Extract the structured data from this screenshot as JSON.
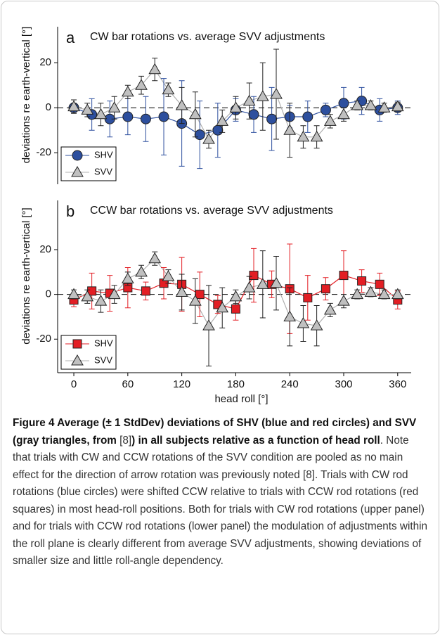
{
  "chart_data": [
    {
      "type": "line",
      "panel_label": "a",
      "title": "CW bar rotations vs. average SVV adjustments",
      "y_label": "deviations re earth-vertical [°]",
      "xlim": [
        -18,
        375
      ],
      "ylim": [
        -34,
        36
      ],
      "yticks": [
        -20,
        0,
        20
      ],
      "grid": false,
      "zero_line": true,
      "legend": "lower left",
      "series": [
        {
          "name": "SHV",
          "color": "#2d4f9e",
          "line_color": "#2d4f9e",
          "error_color": "#2d4f9e",
          "marker": "circle",
          "x": [
            0,
            20,
            40,
            60,
            80,
            100,
            120,
            140,
            160,
            180,
            200,
            220,
            240,
            260,
            280,
            300,
            320,
            340,
            360
          ],
          "values": [
            0,
            -3,
            -5,
            -4,
            -5,
            -4,
            -7,
            -12,
            -10,
            -1,
            -3,
            -5,
            -4,
            -4,
            -1,
            2,
            3,
            -1,
            0
          ],
          "errors": [
            2,
            7,
            8,
            8,
            10,
            17,
            19,
            15,
            12,
            5,
            8,
            14,
            5,
            7,
            3,
            7,
            6,
            5,
            3
          ]
        },
        {
          "name": "SVV",
          "color": "#c0c0c0",
          "line_color": "#b0b0b0",
          "error_color": "#222222",
          "marker": "triangle",
          "x": [
            0,
            15,
            30,
            45,
            60,
            75,
            90,
            105,
            120,
            135,
            150,
            165,
            180,
            195,
            210,
            225,
            240,
            255,
            270,
            285,
            300,
            315,
            330,
            345,
            360
          ],
          "values": [
            0.5,
            -1,
            -3,
            0,
            7,
            10,
            17,
            8,
            1,
            -3,
            -14,
            -6,
            0,
            3,
            5,
            6,
            -10,
            -13,
            -13,
            -6,
            -3,
            1,
            1,
            0,
            0.5
          ],
          "errors": [
            3,
            3,
            5,
            5,
            3,
            4,
            5,
            3,
            8,
            10,
            4,
            5,
            5,
            8,
            15,
            20,
            12,
            5,
            5,
            3,
            3,
            2,
            2,
            2,
            2
          ]
        }
      ]
    },
    {
      "type": "line",
      "panel_label": "b",
      "title": "CCW bar rotations vs. average SVV adjustments",
      "y_label": "deviations re earth-vertical [°]",
      "x_label": "head roll [°]",
      "xlim": [
        -18,
        375
      ],
      "ylim": [
        -35,
        42
      ],
      "yticks": [
        -20,
        0,
        20
      ],
      "xticks": [
        0,
        60,
        120,
        180,
        240,
        300,
        360
      ],
      "grid": false,
      "zero_line": true,
      "legend": "lower left",
      "series": [
        {
          "name": "SHV",
          "color": "#e31e24",
          "line_color": "#e31e24",
          "error_color": "#e31e24",
          "marker": "square",
          "x": [
            0,
            20,
            40,
            60,
            80,
            100,
            120,
            140,
            160,
            180,
            200,
            220,
            240,
            260,
            280,
            300,
            320,
            340,
            360
          ],
          "values": [
            -2.5,
            1.5,
            0.5,
            3,
            1.5,
            5,
            4.5,
            0,
            -4.5,
            -6.5,
            8.5,
            4.5,
            2.5,
            -1.5,
            2.5,
            8.5,
            6,
            4.5,
            -2.5
          ],
          "errors": [
            3,
            8,
            8,
            9,
            4,
            7,
            12,
            10,
            4,
            5,
            12,
            6,
            20,
            10,
            5,
            11,
            5,
            5,
            4
          ]
        },
        {
          "name": "SVV",
          "color": "#c0c0c0",
          "line_color": "#b0b0b0",
          "error_color": "#222222",
          "marker": "triangle",
          "x": [
            0,
            15,
            30,
            45,
            60,
            75,
            90,
            105,
            120,
            135,
            150,
            165,
            180,
            195,
            210,
            225,
            240,
            255,
            270,
            285,
            300,
            315,
            330,
            345,
            360
          ],
          "values": [
            0,
            -1,
            -3,
            0,
            7,
            10,
            16,
            8,
            1,
            -3,
            -14,
            -6,
            -1,
            3,
            4.5,
            5,
            -10,
            -13,
            -14,
            -7,
            -3,
            0,
            1,
            0,
            0
          ],
          "errors": [
            2,
            3,
            5,
            4,
            3,
            3,
            3,
            3,
            8,
            10,
            18,
            9,
            3,
            5,
            15,
            12,
            13,
            8,
            9,
            3,
            3,
            2,
            2,
            2,
            2
          ]
        }
      ]
    }
  ],
  "caption": {
    "title_1": "Figure 4 Average (± 1 StdDev) deviations of SHV (blue and red circles) and SVV (gray triangles, from ",
    "ref_1": "[8]",
    "title_2": ") in all subjects relative as a function of head roll",
    "text": ". Note that trials with CW and CCW rotations of the SVV condition are pooled as no main effect for the direction of arrow rotation was previously noted [8]. Trials with CW rod rotations (blue circles) were shifted CCW relative to trials with CCW rod rotations (red squares) in most head-roll positions. Both for trials with CW rod rotations (upper panel) and for trials with CCW rod rotations (lower panel) the modulation of adjustments within the roll plane is clearly different from average SVV adjustments, showing deviations of smaller size and little roll-angle dependency."
  }
}
